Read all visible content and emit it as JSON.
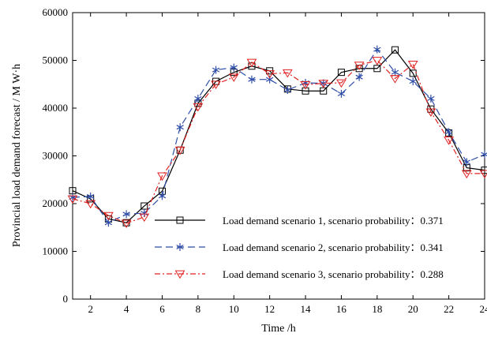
{
  "chart_data": {
    "type": "line",
    "xlabel": "Time  /h",
    "ylabel": "Provincial load demand forecast  / M W·h",
    "xlim": [
      1,
      24
    ],
    "ylim": [
      0,
      60000
    ],
    "xticks": [
      2,
      4,
      6,
      8,
      10,
      12,
      14,
      16,
      18,
      20,
      22,
      24
    ],
    "yticks": [
      0,
      10000,
      20000,
      30000,
      40000,
      50000,
      60000
    ],
    "grid": false,
    "legend_position": "lower-center",
    "x": [
      1,
      2,
      3,
      4,
      5,
      6,
      7,
      8,
      9,
      10,
      11,
      12,
      13,
      14,
      15,
      16,
      17,
      18,
      19,
      20,
      21,
      22,
      23,
      24
    ],
    "series": [
      {
        "name": "Load demand scenario 1, scenario probability：0.371",
        "color": "#000000",
        "marker": "square",
        "line_style": "solid",
        "values": [
          22700,
          21000,
          16800,
          16000,
          19500,
          22600,
          31200,
          41000,
          45600,
          47500,
          48800,
          47800,
          44000,
          43600,
          43600,
          47500,
          48300,
          48300,
          52200,
          47300,
          39800,
          34800,
          27500,
          27000
        ]
      },
      {
        "name": "Load demand scenario 2, scenario probability：0.341",
        "color": "#2f4ea8",
        "marker": "asterisk",
        "line_style": "dashed",
        "values": [
          21300,
          21500,
          16000,
          17800,
          18000,
          21600,
          36000,
          42000,
          48000,
          48500,
          46000,
          46000,
          43800,
          45300,
          45200,
          43000,
          46500,
          52300,
          47500,
          45600,
          42000,
          35000,
          28700,
          30300
        ]
      },
      {
        "name": "Load demand scenario 3, scenario probability：0.288",
        "color": "#e02020",
        "marker": "triangle-down",
        "line_style": "dashdot",
        "values": [
          21000,
          20000,
          17500,
          15900,
          17200,
          25800,
          31200,
          40300,
          45000,
          46500,
          49600,
          47200,
          47400,
          44900,
          45200,
          45300,
          49000,
          50000,
          46200,
          49200,
          39200,
          33300,
          26300,
          26300
        ]
      }
    ]
  }
}
